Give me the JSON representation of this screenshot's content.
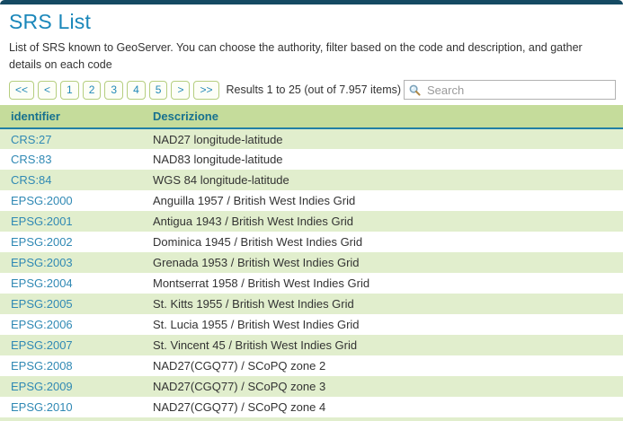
{
  "page": {
    "title": "SRS List",
    "description": "List of SRS known to GeoServer. You can choose the authority, filter based on the code and description, and gather details on each code"
  },
  "pager": {
    "buttons": [
      {
        "name": "first",
        "label": "<<"
      },
      {
        "name": "previous",
        "label": "<"
      },
      {
        "name": "page-1",
        "label": "1"
      },
      {
        "name": "page-2",
        "label": "2"
      },
      {
        "name": "page-3",
        "label": "3"
      },
      {
        "name": "page-4",
        "label": "4"
      },
      {
        "name": "page-5",
        "label": "5"
      },
      {
        "name": "next",
        "label": ">"
      },
      {
        "name": "last",
        "label": ">>"
      }
    ],
    "results_text": "Results 1 to 25 (out of 7.957 items)"
  },
  "search": {
    "placeholder": "Search",
    "icon": "magnifier-icon"
  },
  "table": {
    "columns": [
      {
        "key": "identifier",
        "label": "identifier"
      },
      {
        "key": "description",
        "label": "Descrizione"
      }
    ],
    "rows": [
      {
        "identifier": "CRS:27",
        "description": "NAD27 longitude-latitude"
      },
      {
        "identifier": "CRS:83",
        "description": "NAD83 longitude-latitude"
      },
      {
        "identifier": "CRS:84",
        "description": "WGS 84 longitude-latitude"
      },
      {
        "identifier": "EPSG:2000",
        "description": "Anguilla 1957 / British West Indies Grid"
      },
      {
        "identifier": "EPSG:2001",
        "description": "Antigua 1943 / British West Indies Grid"
      },
      {
        "identifier": "EPSG:2002",
        "description": "Dominica 1945 / British West Indies Grid"
      },
      {
        "identifier": "EPSG:2003",
        "description": "Grenada 1953 / British West Indies Grid"
      },
      {
        "identifier": "EPSG:2004",
        "description": "Montserrat 1958 / British West Indies Grid"
      },
      {
        "identifier": "EPSG:2005",
        "description": "St. Kitts 1955 / British West Indies Grid"
      },
      {
        "identifier": "EPSG:2006",
        "description": "St. Lucia 1955 / British West Indies Grid"
      },
      {
        "identifier": "EPSG:2007",
        "description": "St. Vincent 45 / British West Indies Grid"
      },
      {
        "identifier": "EPSG:2008",
        "description": "NAD27(CGQ77) / SCoPQ zone 2"
      },
      {
        "identifier": "EPSG:2009",
        "description": "NAD27(CGQ77) / SCoPQ zone 3"
      },
      {
        "identifier": "EPSG:2010",
        "description": "NAD27(CGQ77) / SCoPQ zone 4"
      }
    ]
  },
  "colors": {
    "top_bar": "#154a63",
    "title": "#1a87ba",
    "text": "#333333",
    "pager_border": "#b5ce7f",
    "pager_bg": "#fdfef7",
    "pager_text": "#2289b8",
    "header_bg": "#c5dc9b",
    "header_text": "#17718f",
    "header_border": "#2180a5",
    "row_alt": "#e1eecd",
    "link": "#3089b4"
  }
}
